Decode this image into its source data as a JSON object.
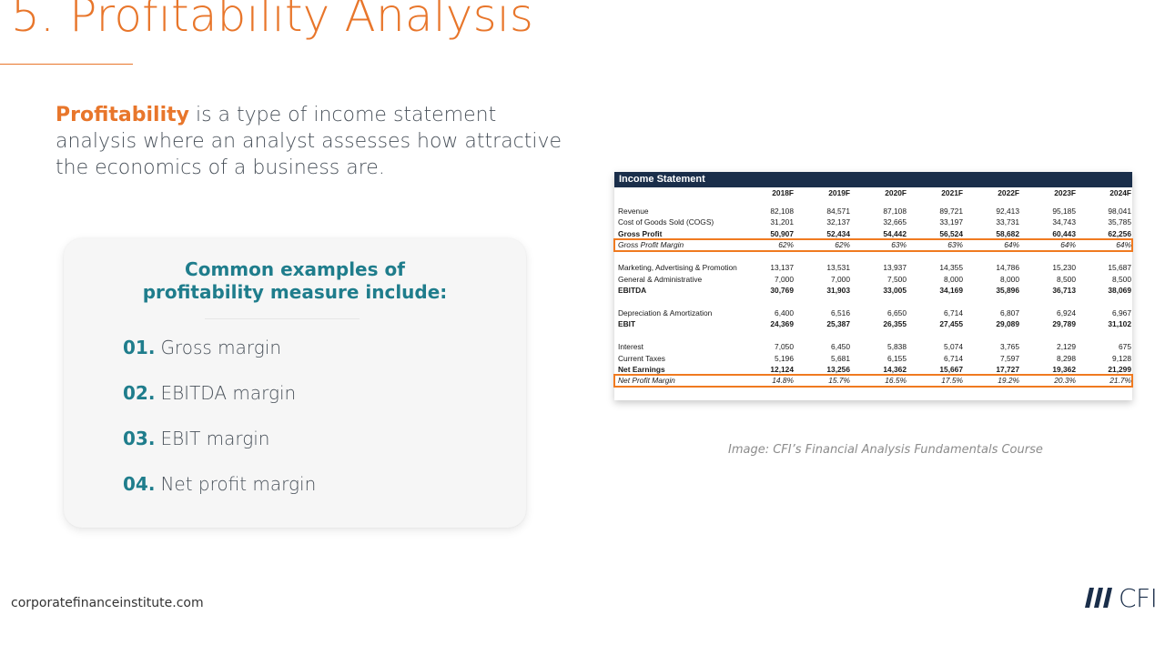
{
  "slide": {
    "title": "5. Profitability Analysis",
    "intro_highlight": "Profitability",
    "intro_text": " is a type of income statement analysis where an analyst assesses how attractive the economics of a business are."
  },
  "card": {
    "heading_line1": "Common examples of",
    "heading_line2": "profitability measure include:",
    "items": [
      {
        "num": "01.",
        "label": "Gross margin"
      },
      {
        "num": "02.",
        "label": "EBITDA margin"
      },
      {
        "num": "03.",
        "label": "EBIT margin"
      },
      {
        "num": "04.",
        "label": "Net profit margin"
      }
    ]
  },
  "income_statement": {
    "title": "Income Statement",
    "years": [
      "2018F",
      "2019F",
      "2020F",
      "2021F",
      "2022F",
      "2023F",
      "2024F"
    ],
    "rows": [
      {
        "label": "Revenue",
        "values": [
          "82,108",
          "84,571",
          "87,108",
          "89,721",
          "92,413",
          "95,185",
          "98,041"
        ],
        "style": "normal"
      },
      {
        "label": "Cost of Goods Sold (COGS)",
        "values": [
          "31,201",
          "32,137",
          "32,665",
          "33,197",
          "33,731",
          "34,743",
          "35,785"
        ],
        "style": "normal"
      },
      {
        "label": "Gross Profit",
        "values": [
          "50,907",
          "52,434",
          "54,442",
          "56,524",
          "58,682",
          "60,443",
          "62,256"
        ],
        "style": "bold"
      },
      {
        "label": "Gross Profit Margin",
        "values": [
          "62%",
          "62%",
          "63%",
          "63%",
          "64%",
          "64%",
          "64%"
        ],
        "style": "italic-highlight"
      },
      {
        "label": "",
        "values": [],
        "style": "gap"
      },
      {
        "label": "Marketing, Advertising & Promotion",
        "values": [
          "13,137",
          "13,531",
          "13,937",
          "14,355",
          "14,786",
          "15,230",
          "15,687"
        ],
        "style": "normal"
      },
      {
        "label": "General & Administrative",
        "values": [
          "7,000",
          "7,000",
          "7,500",
          "8,000",
          "8,000",
          "8,500",
          "8,500"
        ],
        "style": "normal"
      },
      {
        "label": "EBITDA",
        "values": [
          "30,769",
          "31,903",
          "33,005",
          "34,169",
          "35,896",
          "36,713",
          "38,069"
        ],
        "style": "bold"
      },
      {
        "label": "",
        "values": [],
        "style": "gap"
      },
      {
        "label": "Depreciation & Amortization",
        "values": [
          "6,400",
          "6,516",
          "6,650",
          "6,714",
          "6,807",
          "6,924",
          "6,967"
        ],
        "style": "normal"
      },
      {
        "label": "EBIT",
        "values": [
          "24,369",
          "25,387",
          "26,355",
          "27,455",
          "29,089",
          "29,789",
          "31,102"
        ],
        "style": "bold"
      },
      {
        "label": "",
        "values": [],
        "style": "gap"
      },
      {
        "label": "Interest",
        "values": [
          "7,050",
          "6,450",
          "5,838",
          "5,074",
          "3,765",
          "2,129",
          "675"
        ],
        "style": "normal"
      },
      {
        "label": "Current Taxes",
        "values": [
          "5,196",
          "5,681",
          "6,155",
          "6,714",
          "7,597",
          "8,298",
          "9,128"
        ],
        "style": "normal"
      },
      {
        "label": "Net Earnings",
        "values": [
          "12,124",
          "13,256",
          "14,362",
          "15,667",
          "17,727",
          "19,362",
          "21,299"
        ],
        "style": "bold"
      },
      {
        "label": "Net Profit Margin",
        "values": [
          "14.8%",
          "15.7%",
          "16.5%",
          "17.5%",
          "19.2%",
          "20.3%",
          "21.7%"
        ],
        "style": "italic-highlight"
      }
    ],
    "highlight_color": "#f07a20",
    "header_color": "#1a2e4a"
  },
  "caption": "Image: CFI’s Financial Analysis Fundamentals Course",
  "footer": {
    "url": "corporatefinanceinstitute.com",
    "logo_text": "CFI"
  },
  "colors": {
    "accent_orange": "#e8762b",
    "accent_teal": "#1f7d8c",
    "navy": "#1a2e4a"
  }
}
